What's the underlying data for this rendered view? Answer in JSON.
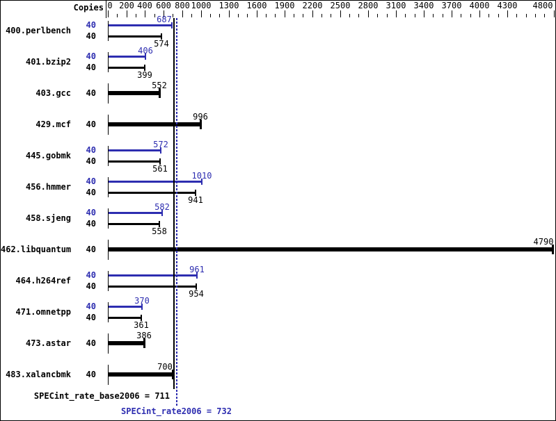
{
  "header": {
    "copies_label": "Copies"
  },
  "axis": {
    "labeled_ticks": [
      "0",
      "200",
      "400",
      "600",
      "800",
      "1000",
      "1300",
      "1600",
      "1900",
      "2200",
      "2500",
      "2800",
      "3100",
      "3400",
      "3700",
      "4000",
      "4300",
      "4800"
    ],
    "minor_tick_step": 100,
    "unit_min": 0,
    "unit_max": 4800
  },
  "chart_data": {
    "type": "bar",
    "orientation": "horizontal",
    "ylabel": "Copies",
    "rows": [
      {
        "name": "400.perlbench",
        "copies": "40",
        "peak": 687,
        "base": 574
      },
      {
        "name": "401.bzip2",
        "copies": "40",
        "peak": 406,
        "base": 399
      },
      {
        "name": "403.gcc",
        "copies": "40",
        "base": 552
      },
      {
        "name": "429.mcf",
        "copies": "40",
        "base": 996
      },
      {
        "name": "445.gobmk",
        "copies": "40",
        "peak": 572,
        "base": 561
      },
      {
        "name": "456.hmmer",
        "copies": "40",
        "peak": 1010,
        "base": 941
      },
      {
        "name": "458.sjeng",
        "copies": "40",
        "peak": 582,
        "base": 558
      },
      {
        "name": "462.libquantum",
        "copies": "40",
        "base": 4790
      },
      {
        "name": "464.h264ref",
        "copies": "40",
        "peak": 961,
        "base": 954
      },
      {
        "name": "471.omnetpp",
        "copies": "40",
        "peak": 370,
        "base": 361
      },
      {
        "name": "473.astar",
        "copies": "40",
        "base": 386
      },
      {
        "name": "483.xalancbmk",
        "copies": "40",
        "base": 700
      }
    ],
    "reference_lines": {
      "base": 711,
      "peak": 732
    }
  },
  "footer": {
    "base_text": "SPECint_rate_base2006 = 711",
    "peak_text": "SPECint_rate2006 = 732"
  },
  "colors": {
    "peak_blue": "#2d2db0",
    "bar_black": "#000000",
    "background": "#ffffff",
    "border": "#000000"
  }
}
